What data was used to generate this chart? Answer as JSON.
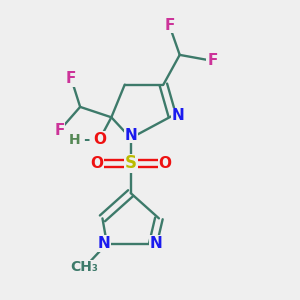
{
  "background_color": "#efefef",
  "fig_size": [
    3.0,
    3.0
  ],
  "dpi": 100,
  "bond_color": "#3d7a6a",
  "atom_colors": {
    "F": "#cc3399",
    "N": "#1a1aee",
    "O": "#ee1111",
    "S": "#bbbb00",
    "H": "#558855",
    "C": "#3d7a6a"
  },
  "font_size": 11
}
